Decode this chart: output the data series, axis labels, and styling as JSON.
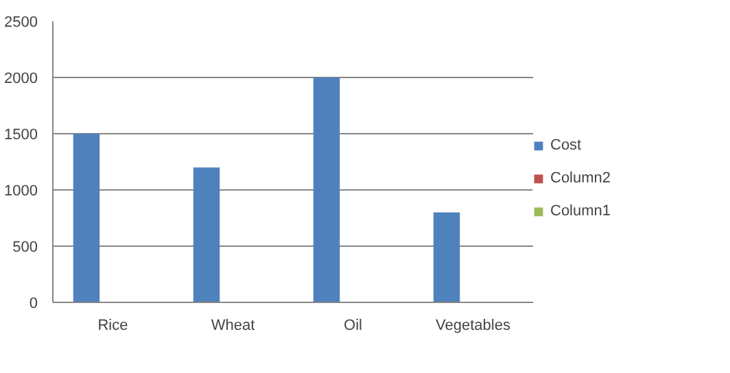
{
  "chart_data": {
    "type": "bar",
    "categories": [
      "Rice",
      "Wheat",
      "Oil",
      "Vegetables"
    ],
    "series": [
      {
        "name": "Cost",
        "color": "#4f81bd",
        "values": [
          1500,
          1200,
          2000,
          800
        ]
      },
      {
        "name": "Column2",
        "color": "#c0504d",
        "values": [
          null,
          null,
          null,
          null
        ]
      },
      {
        "name": "Column1",
        "color": "#9bbb59",
        "values": [
          null,
          null,
          null,
          null
        ]
      }
    ],
    "ylim": [
      0,
      2500
    ],
    "yticks": [
      0,
      500,
      1000,
      1500,
      2000,
      2500
    ],
    "grid": "y",
    "legend": "right"
  }
}
